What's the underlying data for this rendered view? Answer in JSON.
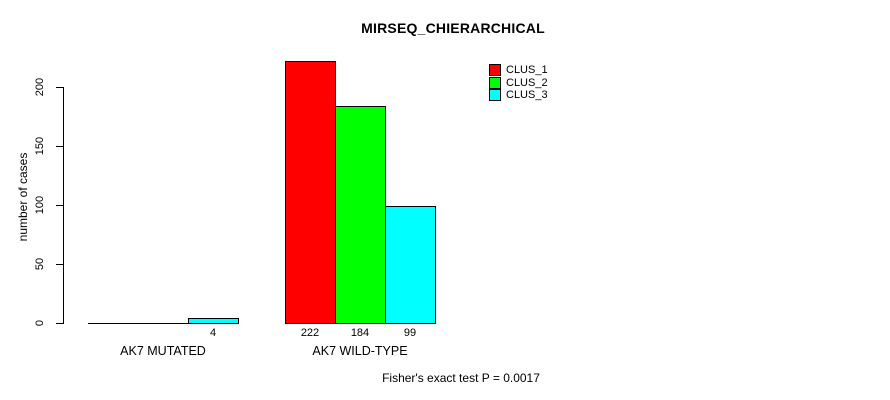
{
  "chart_data": {
    "type": "bar",
    "title": "MIRSEQ_CHIERARCHICAL",
    "ylabel": "number of cases",
    "xlabel": "",
    "categories": [
      "AK7 MUTATED",
      "AK7 WILD-TYPE"
    ],
    "series": [
      {
        "name": "CLUS_1",
        "color": "#FF0000",
        "values": [
          0,
          222
        ]
      },
      {
        "name": "CLUS_2",
        "color": "#00FF00",
        "values": [
          0,
          184
        ]
      },
      {
        "name": "CLUS_3",
        "color": "#00FFFF",
        "values": [
          4,
          99
        ]
      }
    ],
    "bar_value_labels": [
      [
        "",
        "",
        "4"
      ],
      [
        "222",
        "184",
        "99"
      ]
    ],
    "yticks": [
      0,
      50,
      100,
      150,
      200
    ],
    "ylim": [
      0,
      200
    ],
    "grid": false,
    "legend_position": "top-right",
    "annotation": "Fisher's exact test P = 0.0017",
    "axis_color": "#000000",
    "text_color": "#000000",
    "background_color": "#FFFFFF"
  }
}
